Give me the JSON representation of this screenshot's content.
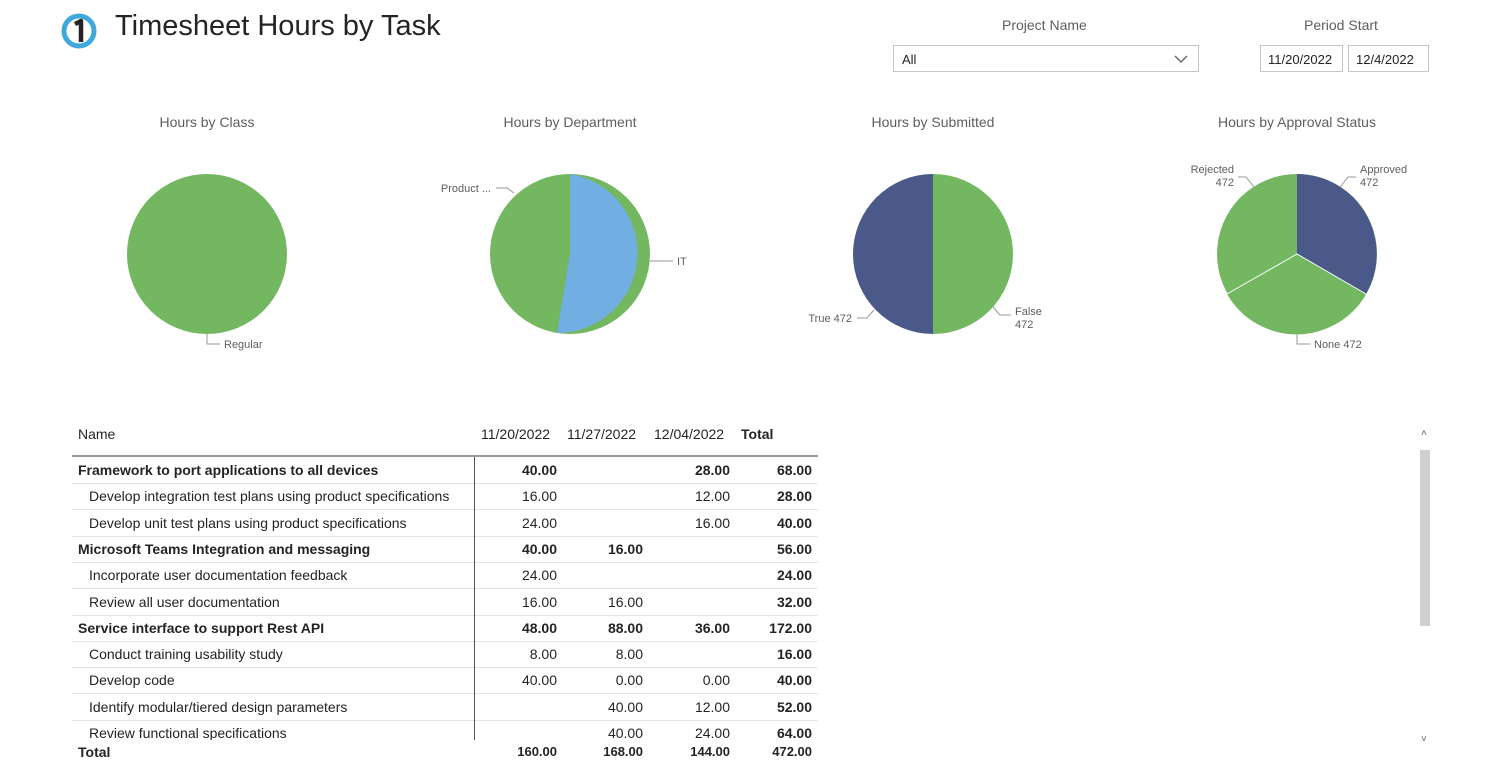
{
  "header": {
    "title": "Timesheet Hours by Task"
  },
  "filters": {
    "project_label": "Project Name",
    "project_value": "All",
    "period_label": "Period Start",
    "date_from": "11/20/2022",
    "date_to": "12/4/2022"
  },
  "charts": {
    "class": {
      "title": "Hours by Class",
      "labels": [
        "Regular"
      ]
    },
    "department": {
      "title": "Hours by Department",
      "labels": [
        "Product ...",
        "IT"
      ]
    },
    "submitted": {
      "title": "Hours by Submitted",
      "label_true": "True 472",
      "label_false_name": "False",
      "label_false_val": "472"
    },
    "approval": {
      "title": "Hours by Approval Status",
      "rejected_name": "Rejected",
      "rejected_val": "472",
      "approved_name": "Approved",
      "approved_val": "472",
      "none_label": "None 472"
    }
  },
  "chart_data": [
    {
      "type": "pie",
      "title": "Hours by Class",
      "slices": [
        {
          "label": "Regular",
          "value": 472
        }
      ],
      "colors": [
        "#73b761"
      ]
    },
    {
      "type": "pie",
      "title": "Hours by Department",
      "slices": [
        {
          "label": "IT",
          "value": 247
        },
        {
          "label": "Product ...",
          "value": 225
        }
      ],
      "colors": [
        "#71afe2",
        "#73b761"
      ]
    },
    {
      "type": "pie",
      "title": "Hours by Submitted",
      "slices": [
        {
          "label": "False",
          "value": 472
        },
        {
          "label": "True",
          "value": 472
        }
      ],
      "colors": [
        "#73b761",
        "#4a588a"
      ]
    },
    {
      "type": "pie",
      "title": "Hours by Approval Status",
      "slices": [
        {
          "label": "Approved",
          "value": 472
        },
        {
          "label": "None",
          "value": 472
        },
        {
          "label": "Rejected",
          "value": 472
        }
      ],
      "colors": [
        "#4a588a",
        "#73b761",
        "#73b761"
      ]
    }
  ],
  "table": {
    "headers": {
      "name": "Name",
      "d1": "11/20/2022",
      "d2": "11/27/2022",
      "d3": "12/04/2022",
      "total": "Total"
    },
    "rows": [
      {
        "level": "parent",
        "name": "Framework to port applications to all devices",
        "d1": "40.00",
        "d2": "",
        "d3": "28.00",
        "total": "68.00"
      },
      {
        "level": "child",
        "name": "Develop integration test plans using product specifications",
        "d1": "16.00",
        "d2": "",
        "d3": "12.00",
        "total": "28.00"
      },
      {
        "level": "child",
        "name": "Develop unit test plans using product specifications",
        "d1": "24.00",
        "d2": "",
        "d3": "16.00",
        "total": "40.00"
      },
      {
        "level": "parent",
        "name": "Microsoft Teams Integration and messaging",
        "d1": "40.00",
        "d2": "16.00",
        "d3": "",
        "total": "56.00"
      },
      {
        "level": "child",
        "name": "Incorporate user documentation feedback",
        "d1": "24.00",
        "d2": "",
        "d3": "",
        "total": "24.00"
      },
      {
        "level": "child",
        "name": "Review all user documentation",
        "d1": "16.00",
        "d2": "16.00",
        "d3": "",
        "total": "32.00"
      },
      {
        "level": "parent",
        "name": "Service interface to support Rest API",
        "d1": "48.00",
        "d2": "88.00",
        "d3": "36.00",
        "total": "172.00"
      },
      {
        "level": "child",
        "name": "Conduct training usability study",
        "d1": "8.00",
        "d2": "8.00",
        "d3": "",
        "total": "16.00"
      },
      {
        "level": "child",
        "name": "Develop code",
        "d1": "40.00",
        "d2": "0.00",
        "d3": "0.00",
        "total": "40.00"
      },
      {
        "level": "child",
        "name": "Identify modular/tiered design parameters",
        "d1": "",
        "d2": "40.00",
        "d3": "12.00",
        "total": "52.00"
      },
      {
        "level": "child",
        "name": "Review functional specifications",
        "d1": "",
        "d2": "40.00",
        "d3": "24.00",
        "total": "64.00"
      }
    ],
    "totals": {
      "name": "Total",
      "d1": "160.00",
      "d2": "168.00",
      "d3": "144.00",
      "total": "472.00"
    }
  }
}
